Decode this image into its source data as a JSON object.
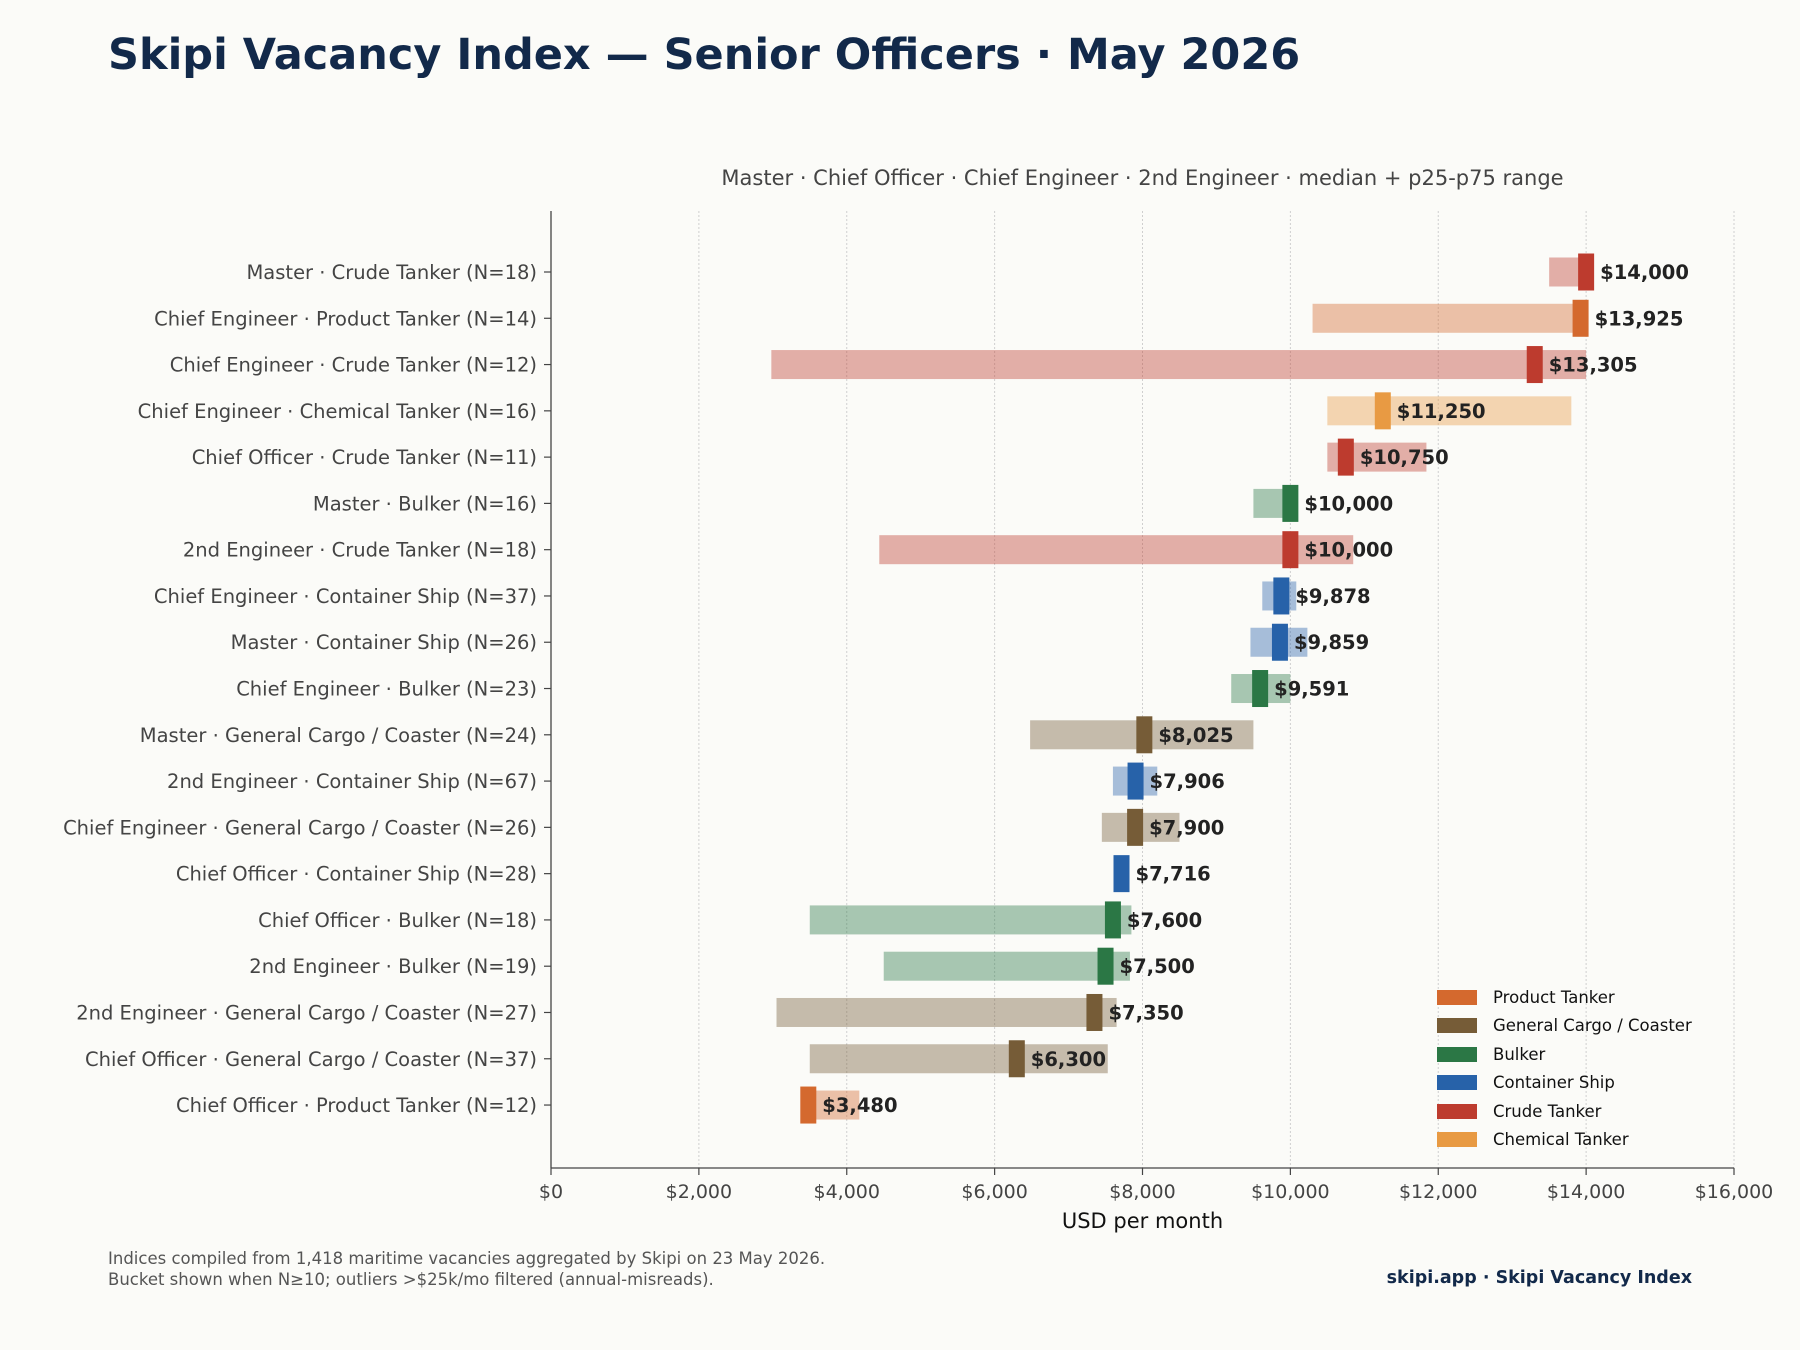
{
  "title": "Skipi Vacancy Index — Senior Officers · May 2026",
  "footnote": {
    "line1": "Indices compiled from 1,418 maritime vacancies aggregated by Skipi on 23 May 2026.",
    "line2": "Bucket shown when N≥10; outliers >$25k/mo filtered (annual-misreads)."
  },
  "brand": "skipi.app · Skipi Vacancy Index",
  "chart_data": {
    "type": "bar",
    "orientation": "horizontal",
    "subtitle": "Master · Chief Officer · Chief Engineer · 2nd Engineer  ·  median + p25-p75 range",
    "xlabel": "USD per month",
    "xlim": [
      0,
      16000
    ],
    "xticks": [
      0,
      2000,
      4000,
      6000,
      8000,
      10000,
      12000,
      14000,
      16000
    ],
    "xtick_labels": [
      "$0",
      "$2,000",
      "$4,000",
      "$6,000",
      "$8,000",
      "$10,000",
      "$12,000",
      "$14,000",
      "$16,000"
    ],
    "grid": "vertical dotted",
    "legend_position": "bottom-right",
    "vessel_colors": {
      "Product Tanker": "#d4692e",
      "General Cargo / Coaster": "#765c37",
      "Bulker": "#2b7745",
      "Container Ship": "#2762a9",
      "Crude Tanker": "#bd3b2e",
      "Chemical Tanker": "#e89a43"
    },
    "legend": [
      "Product Tanker",
      "General Cargo / Coaster",
      "Bulker",
      "Container Ship",
      "Crude Tanker",
      "Chemical Tanker"
    ],
    "rows": [
      {
        "label": "Master · Crude Tanker  (N=18)",
        "vessel": "Crude Tanker",
        "p25": 13500,
        "p75": 14000,
        "median": 14000,
        "median_label": "$14,000"
      },
      {
        "label": "Chief Engineer · Product Tanker  (N=14)",
        "vessel": "Product Tanker",
        "p25": 10300,
        "p75": 13925,
        "median": 13925,
        "median_label": "$13,925"
      },
      {
        "label": "Chief Engineer · Crude Tanker  (N=12)",
        "vessel": "Crude Tanker",
        "p25": 2980,
        "p75": 14000,
        "median": 13305,
        "median_label": "$13,305"
      },
      {
        "label": "Chief Engineer · Chemical Tanker  (N=16)",
        "vessel": "Chemical Tanker",
        "p25": 10500,
        "p75": 13800,
        "median": 11250,
        "median_label": "$11,250"
      },
      {
        "label": "Chief Officer · Crude Tanker  (N=11)",
        "vessel": "Crude Tanker",
        "p25": 10500,
        "p75": 11840,
        "median": 10750,
        "median_label": "$10,750"
      },
      {
        "label": "Master · Bulker  (N=16)",
        "vessel": "Bulker",
        "p25": 9500,
        "p75": 10000,
        "median": 10000,
        "median_label": "$10,000"
      },
      {
        "label": "2nd Engineer · Crude Tanker  (N=18)",
        "vessel": "Crude Tanker",
        "p25": 4440,
        "p75": 10850,
        "median": 10000,
        "median_label": "$10,000"
      },
      {
        "label": "Chief Engineer · Container Ship  (N=37)",
        "vessel": "Container Ship",
        "p25": 9620,
        "p75": 10080,
        "median": 9878,
        "median_label": "$9,878"
      },
      {
        "label": "Master · Container Ship  (N=26)",
        "vessel": "Container Ship",
        "p25": 9460,
        "p75": 10230,
        "median": 9859,
        "median_label": "$9,859"
      },
      {
        "label": "Chief Engineer · Bulker  (N=23)",
        "vessel": "Bulker",
        "p25": 9200,
        "p75": 10000,
        "median": 9591,
        "median_label": "$9,591"
      },
      {
        "label": "Master · General Cargo / Coaster  (N=24)",
        "vessel": "General Cargo / Coaster",
        "p25": 6480,
        "p75": 9500,
        "median": 8025,
        "median_label": "$8,025"
      },
      {
        "label": "2nd Engineer · Container Ship  (N=67)",
        "vessel": "Container Ship",
        "p25": 7600,
        "p75": 8200,
        "median": 7906,
        "median_label": "$7,906"
      },
      {
        "label": "Chief Engineer · General Cargo / Coaster  (N=26)",
        "vessel": "General Cargo / Coaster",
        "p25": 7450,
        "p75": 8500,
        "median": 7900,
        "median_label": "$7,900"
      },
      {
        "label": "Chief Officer · Container Ship  (N=28)",
        "vessel": "Container Ship",
        "p25": 7650,
        "p75": 7800,
        "median": 7716,
        "median_label": "$7,716"
      },
      {
        "label": "Chief Officer · Bulker  (N=18)",
        "vessel": "Bulker",
        "p25": 3500,
        "p75": 7850,
        "median": 7600,
        "median_label": "$7,600"
      },
      {
        "label": "2nd Engineer · Bulker  (N=19)",
        "vessel": "Bulker",
        "p25": 4500,
        "p75": 7830,
        "median": 7500,
        "median_label": "$7,500"
      },
      {
        "label": "2nd Engineer · General Cargo / Coaster  (N=27)",
        "vessel": "General Cargo / Coaster",
        "p25": 3050,
        "p75": 7650,
        "median": 7350,
        "median_label": "$7,350"
      },
      {
        "label": "Chief Officer · General Cargo / Coaster  (N=37)",
        "vessel": "General Cargo / Coaster",
        "p25": 3500,
        "p75": 7530,
        "median": 6300,
        "median_label": "$6,300"
      },
      {
        "label": "Chief Officer · Product Tanker  (N=12)",
        "vessel": "Product Tanker",
        "p25": 3400,
        "p75": 4170,
        "median": 3480,
        "median_label": "$3,480"
      }
    ]
  }
}
